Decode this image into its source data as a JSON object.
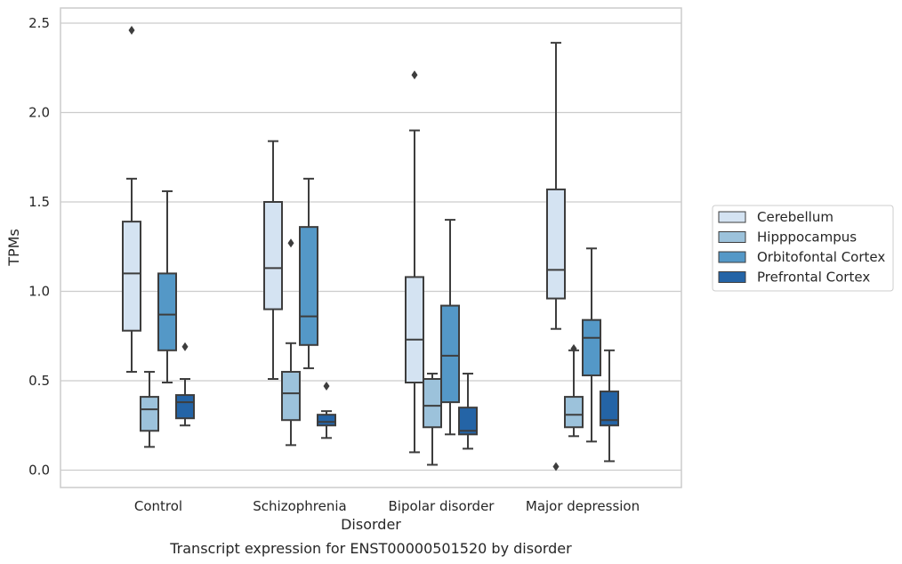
{
  "chart_data": {
    "type": "box",
    "xlabel": "Disorder",
    "ylabel": "TPMs",
    "caption": "Transcript expression for ENST00000501520 by disorder",
    "ylim": [
      -0.1,
      2.59
    ],
    "yticks": [
      "0.0",
      "0.5",
      "1.0",
      "1.5",
      "2.0",
      "2.5"
    ],
    "ytick_values": [
      0.0,
      0.5,
      1.0,
      1.5,
      2.0,
      2.5
    ],
    "grid": "horizontal",
    "legend_position": "right",
    "categories": [
      "Control",
      "Schizophrenia",
      "Bipolar disorder",
      "Major depression"
    ],
    "series": [
      {
        "name": "Cerebellum",
        "color": "#d4e3f2",
        "boxes": [
          {
            "whisker_low": 0.55,
            "q1": 0.78,
            "median": 1.1,
            "q3": 1.39,
            "whisker_high": 1.63,
            "outliers": [
              2.46
            ]
          },
          {
            "whisker_low": 0.51,
            "q1": 0.9,
            "median": 1.13,
            "q3": 1.5,
            "whisker_high": 1.84,
            "outliers": []
          },
          {
            "whisker_low": 0.1,
            "q1": 0.49,
            "median": 0.73,
            "q3": 1.08,
            "whisker_high": 1.9,
            "outliers": [
              2.21
            ]
          },
          {
            "whisker_low": 0.79,
            "q1": 0.96,
            "median": 1.12,
            "q3": 1.57,
            "whisker_high": 2.39,
            "outliers": [
              0.02
            ]
          }
        ]
      },
      {
        "name": "Hipppocampus",
        "color": "#9cc2db",
        "boxes": [
          {
            "whisker_low": 0.13,
            "q1": 0.22,
            "median": 0.34,
            "q3": 0.41,
            "whisker_high": 0.55,
            "outliers": []
          },
          {
            "whisker_low": 0.14,
            "q1": 0.28,
            "median": 0.43,
            "q3": 0.55,
            "whisker_high": 0.71,
            "outliers": [
              1.27
            ]
          },
          {
            "whisker_low": 0.03,
            "q1": 0.24,
            "median": 0.36,
            "q3": 0.51,
            "whisker_high": 0.54,
            "outliers": []
          },
          {
            "whisker_low": 0.19,
            "q1": 0.24,
            "median": 0.31,
            "q3": 0.41,
            "whisker_high": 0.67,
            "outliers": [
              0.68
            ]
          }
        ]
      },
      {
        "name": "Orbitofontal Cortex",
        "color": "#5498c7",
        "boxes": [
          {
            "whisker_low": 0.49,
            "q1": 0.67,
            "median": 0.87,
            "q3": 1.1,
            "whisker_high": 1.56,
            "outliers": []
          },
          {
            "whisker_low": 0.57,
            "q1": 0.7,
            "median": 0.86,
            "q3": 1.36,
            "whisker_high": 1.63,
            "outliers": []
          },
          {
            "whisker_low": 0.2,
            "q1": 0.38,
            "median": 0.64,
            "q3": 0.92,
            "whisker_high": 1.4,
            "outliers": []
          },
          {
            "whisker_low": 0.16,
            "q1": 0.53,
            "median": 0.74,
            "q3": 0.84,
            "whisker_high": 1.24,
            "outliers": []
          }
        ]
      },
      {
        "name": "Prefrontal Cortex",
        "color": "#2464a6",
        "boxes": [
          {
            "whisker_low": 0.25,
            "q1": 0.29,
            "median": 0.38,
            "q3": 0.42,
            "whisker_high": 0.51,
            "outliers": [
              0.69
            ]
          },
          {
            "whisker_low": 0.18,
            "q1": 0.25,
            "median": 0.27,
            "q3": 0.31,
            "whisker_high": 0.33,
            "outliers": [
              0.47
            ]
          },
          {
            "whisker_low": 0.12,
            "q1": 0.2,
            "median": 0.22,
            "q3": 0.35,
            "whisker_high": 0.54,
            "outliers": []
          },
          {
            "whisker_low": 0.05,
            "q1": 0.25,
            "median": 0.28,
            "q3": 0.44,
            "whisker_high": 0.67,
            "outliers": []
          }
        ]
      }
    ]
  }
}
